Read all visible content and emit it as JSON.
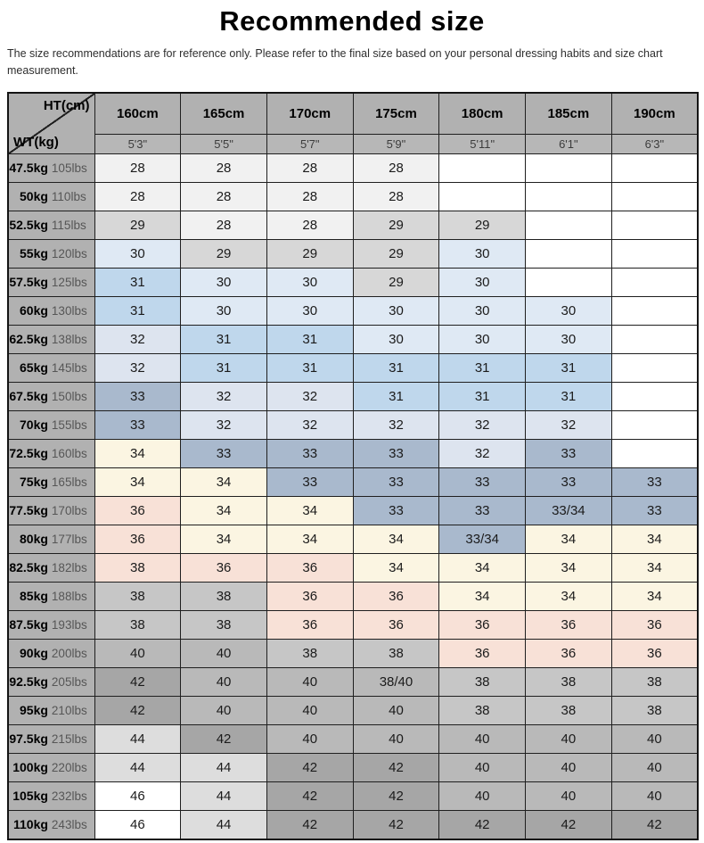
{
  "title": "Recommended size",
  "disclaimer": "The size recommendations are for reference only. Please refer to the final size based on your personal dressing habits and size chart measurement.",
  "table": {
    "corner": {
      "ht_label": "HT(cm)",
      "wt_label": "WT(kg)"
    },
    "height_headers": [
      "160cm",
      "165cm",
      "170cm",
      "175cm",
      "180cm",
      "185cm",
      "190cm"
    ],
    "height_subheaders": [
      "5'3\"",
      "5'5\"",
      "5'7\"",
      "5'9\"",
      "5'11\"",
      "6'1\"",
      "6'3\""
    ],
    "rows": [
      {
        "kg": "47.5kg",
        "lbs": "105lbs",
        "cells": [
          "28",
          "28",
          "28",
          "28",
          "",
          "",
          ""
        ]
      },
      {
        "kg": "50kg",
        "lbs": "110lbs",
        "cells": [
          "28",
          "28",
          "28",
          "28",
          "",
          "",
          ""
        ]
      },
      {
        "kg": "52.5kg",
        "lbs": "115lbs",
        "cells": [
          "29",
          "28",
          "28",
          "29",
          "29",
          "",
          ""
        ]
      },
      {
        "kg": "55kg",
        "lbs": "120lbs",
        "cells": [
          "30",
          "29",
          "29",
          "29",
          "30",
          "",
          ""
        ]
      },
      {
        "kg": "57.5kg",
        "lbs": "125lbs",
        "cells": [
          "31",
          "30",
          "30",
          "29",
          "30",
          "",
          ""
        ]
      },
      {
        "kg": "60kg",
        "lbs": "130lbs",
        "cells": [
          "31",
          "30",
          "30",
          "30",
          "30",
          "30",
          ""
        ]
      },
      {
        "kg": "62.5kg",
        "lbs": "138lbs",
        "cells": [
          "32",
          "31",
          "31",
          "30",
          "30",
          "30",
          ""
        ]
      },
      {
        "kg": "65kg",
        "lbs": "145lbs",
        "cells": [
          "32",
          "31",
          "31",
          "31",
          "31",
          "31",
          ""
        ]
      },
      {
        "kg": "67.5kg",
        "lbs": "150lbs",
        "cells": [
          "33",
          "32",
          "32",
          "31",
          "31",
          "31",
          ""
        ]
      },
      {
        "kg": "70kg",
        "lbs": "155lbs",
        "cells": [
          "33",
          "32",
          "32",
          "32",
          "32",
          "32",
          ""
        ]
      },
      {
        "kg": "72.5kg",
        "lbs": "160lbs",
        "cells": [
          "34",
          "33",
          "33",
          "33",
          "32",
          "33",
          ""
        ]
      },
      {
        "kg": "75kg",
        "lbs": "165lbs",
        "cells": [
          "34",
          "34",
          "33",
          "33",
          "33",
          "33",
          "33"
        ]
      },
      {
        "kg": "77.5kg",
        "lbs": "170lbs",
        "cells": [
          "36",
          "34",
          "34",
          "33",
          "33",
          "33/34",
          "33"
        ]
      },
      {
        "kg": "80kg",
        "lbs": "177lbs",
        "cells": [
          "36",
          "34",
          "34",
          "34",
          "33/34",
          "34",
          "34"
        ]
      },
      {
        "kg": "82.5kg",
        "lbs": "182lbs",
        "cells": [
          "38",
          "36",
          "36",
          "34",
          "34",
          "34",
          "34"
        ]
      },
      {
        "kg": "85kg",
        "lbs": "188lbs",
        "cells": [
          "38",
          "38",
          "36",
          "36",
          "34",
          "34",
          "34"
        ]
      },
      {
        "kg": "87.5kg",
        "lbs": "193lbs",
        "cells": [
          "38",
          "38",
          "36",
          "36",
          "36",
          "36",
          "36"
        ]
      },
      {
        "kg": "90kg",
        "lbs": "200lbs",
        "cells": [
          "40",
          "40",
          "38",
          "38",
          "36",
          "36",
          "36"
        ]
      },
      {
        "kg": "92.5kg",
        "lbs": "205lbs",
        "cells": [
          "42",
          "40",
          "40",
          "38/40",
          "38",
          "38",
          "38"
        ]
      },
      {
        "kg": "95kg",
        "lbs": "210lbs",
        "cells": [
          "42",
          "40",
          "40",
          "40",
          "38",
          "38",
          "38"
        ]
      },
      {
        "kg": "97.5kg",
        "lbs": "215lbs",
        "cells": [
          "44",
          "42",
          "40",
          "40",
          "40",
          "40",
          "40"
        ]
      },
      {
        "kg": "100kg",
        "lbs": "220lbs",
        "cells": [
          "44",
          "44",
          "42",
          "42",
          "40",
          "40",
          "40"
        ]
      },
      {
        "kg": "105kg",
        "lbs": "232lbs",
        "cells": [
          "46",
          "44",
          "42",
          "42",
          "40",
          "40",
          "40"
        ]
      },
      {
        "kg": "110kg",
        "lbs": "243lbs",
        "cells": [
          "46",
          "44",
          "42",
          "42",
          "42",
          "42",
          "42"
        ]
      }
    ],
    "palette": {
      "28": "#f1f1f1",
      "29": "#d7d7d7",
      "30": "#dfe9f4",
      "31": "#bfd7ec",
      "32": "#dde4ef",
      "33": "#a9b9cd",
      "33/34": "#a9b9cd",
      "34": "#fbf5e2",
      "36": "#f8e1d7",
      "38": "#c6c6c6",
      "38/40": "#b9b9b9",
      "40": "#b9b9b9",
      "42": "#a6a6a6",
      "44": "#dddddd",
      "46": "#ffffff",
      "": "#ffffff"
    },
    "cell_overrides": [
      {
        "row_index": 14,
        "col_index": 0,
        "color": "#f8e1d7"
      }
    ],
    "colors": {
      "header_bg": "#b1b1b1",
      "subheader_bg": "#b7b7b7",
      "label_bg": "#b1b1b1",
      "border": "#1f1f1f",
      "lbs_text": "#565656",
      "subheader_text": "#3c3c3c",
      "cell_text": "#1b1b1b"
    }
  }
}
